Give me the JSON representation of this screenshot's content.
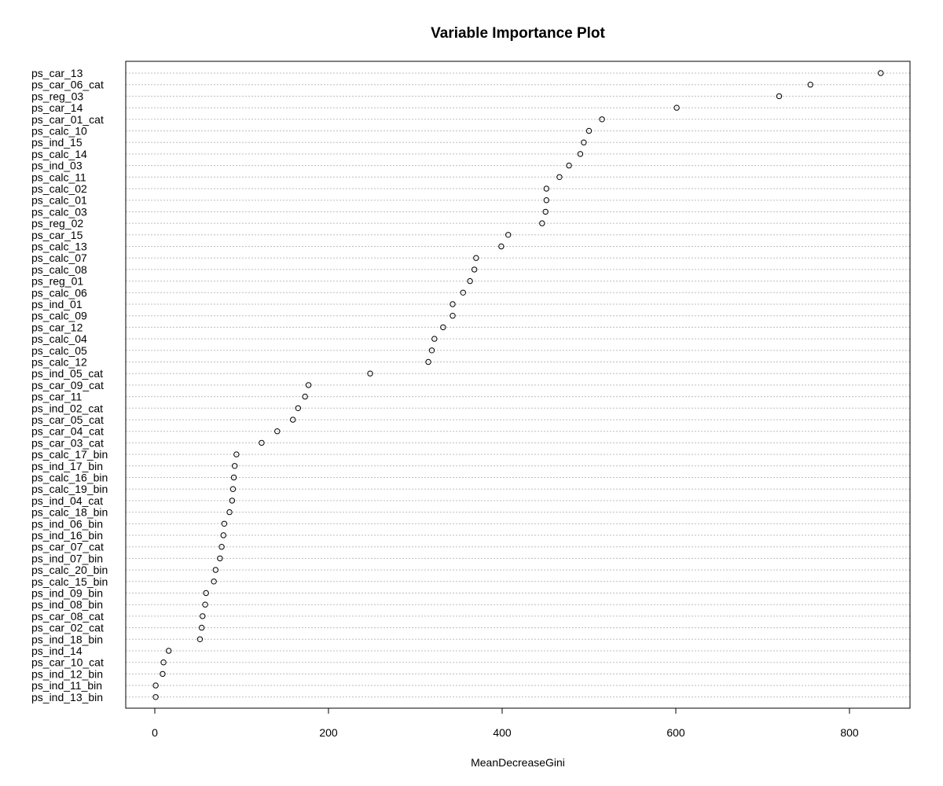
{
  "chart_data": {
    "type": "scatter",
    "title": "Variable Importance Plot",
    "xlabel": "MeanDecreaseGini",
    "ylabel": "",
    "xlim": [
      -15,
      850
    ],
    "xticks": [
      0,
      200,
      400,
      600,
      800
    ],
    "grid": true,
    "categories": [
      "ps_car_13",
      "ps_car_06_cat",
      "ps_reg_03",
      "ps_car_14",
      "ps_car_01_cat",
      "ps_calc_10",
      "ps_ind_15",
      "ps_calc_14",
      "ps_ind_03",
      "ps_calc_11",
      "ps_calc_02",
      "ps_calc_01",
      "ps_calc_03",
      "ps_reg_02",
      "ps_car_15",
      "ps_calc_13",
      "ps_calc_07",
      "ps_calc_08",
      "ps_reg_01",
      "ps_calc_06",
      "ps_ind_01",
      "ps_calc_09",
      "ps_car_12",
      "ps_calc_04",
      "ps_calc_05",
      "ps_calc_12",
      "ps_ind_05_cat",
      "ps_car_09_cat",
      "ps_car_11",
      "ps_ind_02_cat",
      "ps_car_05_cat",
      "ps_car_04_cat",
      "ps_car_03_cat",
      "ps_calc_17_bin",
      "ps_ind_17_bin",
      "ps_calc_16_bin",
      "ps_calc_19_bin",
      "ps_ind_04_cat",
      "ps_calc_18_bin",
      "ps_ind_06_bin",
      "ps_ind_16_bin",
      "ps_car_07_cat",
      "ps_ind_07_bin",
      "ps_calc_20_bin",
      "ps_calc_15_bin",
      "ps_ind_09_bin",
      "ps_ind_08_bin",
      "ps_car_08_cat",
      "ps_car_02_cat",
      "ps_ind_18_bin",
      "ps_ind_14",
      "ps_car_10_cat",
      "ps_ind_12_bin",
      "ps_ind_11_bin",
      "ps_ind_13_bin"
    ],
    "values": [
      836,
      755,
      719,
      601,
      515,
      500,
      494,
      490,
      477,
      466,
      451,
      451,
      450,
      446,
      407,
      399,
      370,
      368,
      363,
      355,
      343,
      343,
      332,
      322,
      319,
      315,
      248,
      177,
      173,
      165,
      159,
      141,
      123,
      94,
      92,
      91,
      90,
      89,
      86,
      80,
      79,
      77,
      75,
      70,
      68,
      59,
      58,
      55,
      54,
      52,
      16,
      10,
      9,
      1,
      1
    ]
  }
}
